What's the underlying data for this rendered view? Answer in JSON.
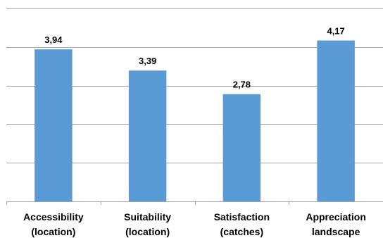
{
  "chart_data": {
    "type": "bar",
    "categories": [
      [
        "Accessibility",
        "(location)"
      ],
      [
        "Suitability",
        "(location)"
      ],
      [
        "Satisfaction",
        "(catches)"
      ],
      [
        "Appreciation",
        "landscape"
      ]
    ],
    "values": [
      3.94,
      3.39,
      2.78,
      4.17
    ],
    "value_labels": [
      "3,94",
      "3,39",
      "2,78",
      "4,17"
    ],
    "ylim": [
      0,
      5
    ],
    "y_gridlines": [
      0,
      1,
      2,
      3,
      4,
      5
    ],
    "y_tick_labels_shown": false,
    "grid": true,
    "bar_color": "#5b9bd5",
    "title": "",
    "xlabel": "",
    "ylabel": ""
  }
}
